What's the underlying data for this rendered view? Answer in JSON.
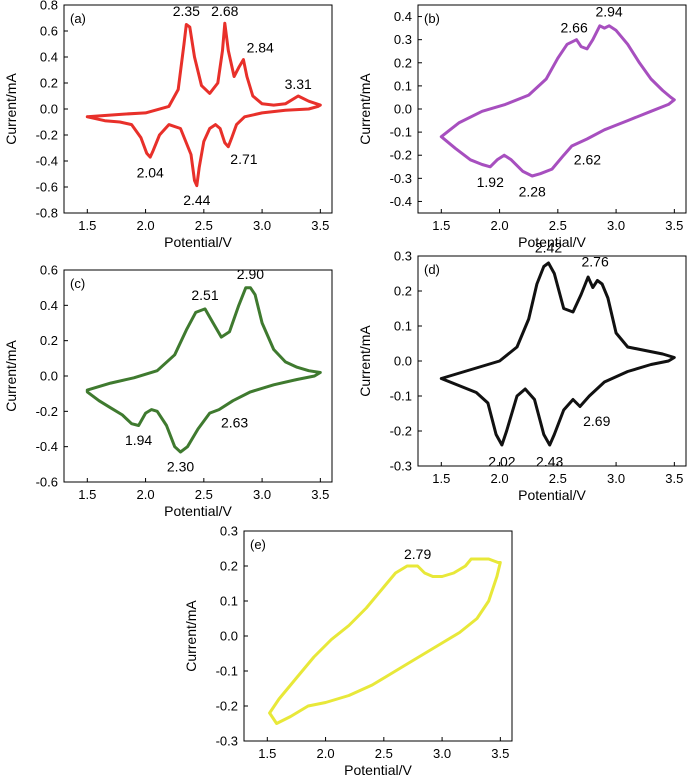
{
  "chart_data": [
    {
      "id": "a",
      "type": "line",
      "panel_label": "(a)",
      "xlabel": "Potential/V",
      "ylabel": "Current/mA",
      "xlim": [
        1.3,
        3.6
      ],
      "ylim": [
        -0.8,
        0.8
      ],
      "xticks": [
        1.5,
        2.0,
        2.5,
        3.0,
        3.5
      ],
      "xtick_labels": [
        "1.5",
        "2.0",
        "2.5",
        "3.0",
        "3.5"
      ],
      "yticks": [
        -0.8,
        -0.6,
        -0.4,
        -0.2,
        0.0,
        0.2,
        0.4,
        0.6,
        0.8
      ],
      "ytick_labels": [
        "-0.8",
        "-0.6",
        "-0.4",
        "-0.2",
        "0.0",
        "0.2",
        "0.4",
        "0.6",
        "0.8"
      ],
      "color": "#e8302a",
      "series": [
        {
          "name": "CV (a)",
          "x": [
            1.5,
            1.8,
            2.0,
            2.2,
            2.28,
            2.33,
            2.35,
            2.38,
            2.42,
            2.48,
            2.55,
            2.62,
            2.66,
            2.68,
            2.71,
            2.76,
            2.8,
            2.84,
            2.87,
            2.92,
            3.0,
            3.1,
            3.2,
            3.31,
            3.4,
            3.5,
            3.48,
            3.4,
            3.2,
            3.0,
            2.85,
            2.78,
            2.74,
            2.71,
            2.68,
            2.64,
            2.6,
            2.55,
            2.5,
            2.46,
            2.44,
            2.42,
            2.39,
            2.3,
            2.2,
            2.12,
            2.06,
            2.04,
            2.01,
            1.96,
            1.88,
            1.78,
            1.65,
            1.5
          ],
          "y": [
            -0.06,
            -0.04,
            -0.03,
            0.02,
            0.15,
            0.5,
            0.65,
            0.63,
            0.4,
            0.18,
            0.12,
            0.2,
            0.45,
            0.66,
            0.45,
            0.25,
            0.32,
            0.38,
            0.25,
            0.1,
            0.04,
            0.03,
            0.04,
            0.1,
            0.06,
            0.03,
            0.02,
            0.0,
            -0.01,
            -0.03,
            -0.06,
            -0.12,
            -0.22,
            -0.29,
            -0.26,
            -0.15,
            -0.12,
            -0.15,
            -0.25,
            -0.45,
            -0.59,
            -0.55,
            -0.35,
            -0.15,
            -0.12,
            -0.2,
            -0.33,
            -0.37,
            -0.34,
            -0.22,
            -0.12,
            -0.1,
            -0.09,
            -0.06
          ]
        }
      ],
      "annotations": [
        {
          "text": "2.35",
          "x": 2.35,
          "y": 0.66,
          "pos": "above"
        },
        {
          "text": "2.68",
          "x": 2.68,
          "y": 0.66,
          "pos": "above"
        },
        {
          "text": "2.84",
          "x": 2.85,
          "y": 0.38,
          "pos": "above-right"
        },
        {
          "text": "3.31",
          "x": 3.31,
          "y": 0.1,
          "pos": "above"
        },
        {
          "text": "2.04",
          "x": 2.04,
          "y": -0.39,
          "pos": "below"
        },
        {
          "text": "2.44",
          "x": 2.44,
          "y": -0.6,
          "pos": "below"
        },
        {
          "text": "2.71",
          "x": 2.71,
          "y": -0.3,
          "pos": "below-right"
        }
      ]
    },
    {
      "id": "b",
      "type": "line",
      "panel_label": "(b)",
      "xlabel": "Potential/V",
      "ylabel": "Current/mA",
      "xlim": [
        1.3,
        3.6
      ],
      "ylim": [
        -0.45,
        0.45
      ],
      "xticks": [
        1.5,
        2.0,
        2.5,
        3.0,
        3.5
      ],
      "xtick_labels": [
        "1.5",
        "2.0",
        "2.5",
        "3.0",
        "3.5"
      ],
      "yticks": [
        -0.4,
        -0.3,
        -0.2,
        -0.1,
        0.0,
        0.1,
        0.2,
        0.3,
        0.4
      ],
      "ytick_labels": [
        "-0.4",
        "-0.3",
        "-0.2",
        "-0.1",
        "0.0",
        "0.1",
        "0.2",
        "0.3",
        "0.4"
      ],
      "color": "#a74fbf",
      "series": [
        {
          "name": "CV (b)",
          "x": [
            1.5,
            1.65,
            1.85,
            2.05,
            2.25,
            2.4,
            2.5,
            2.58,
            2.66,
            2.7,
            2.75,
            2.8,
            2.86,
            2.9,
            2.94,
            3.0,
            3.1,
            3.2,
            3.3,
            3.4,
            3.47,
            3.5,
            3.45,
            3.3,
            3.1,
            2.9,
            2.75,
            2.62,
            2.55,
            2.45,
            2.35,
            2.28,
            2.2,
            2.1,
            2.04,
            1.98,
            1.92,
            1.85,
            1.75,
            1.62,
            1.5
          ],
          "y": [
            -0.12,
            -0.06,
            -0.01,
            0.02,
            0.06,
            0.13,
            0.22,
            0.28,
            0.3,
            0.27,
            0.26,
            0.3,
            0.36,
            0.35,
            0.36,
            0.34,
            0.28,
            0.2,
            0.13,
            0.08,
            0.05,
            0.04,
            0.02,
            -0.01,
            -0.05,
            -0.09,
            -0.13,
            -0.16,
            -0.2,
            -0.26,
            -0.28,
            -0.29,
            -0.27,
            -0.22,
            -0.2,
            -0.22,
            -0.25,
            -0.24,
            -0.22,
            -0.17,
            -0.12
          ]
        }
      ],
      "annotations": [
        {
          "text": "2.66",
          "x": 2.64,
          "y": 0.3,
          "pos": "above"
        },
        {
          "text": "2.94",
          "x": 2.94,
          "y": 0.37,
          "pos": "above"
        },
        {
          "text": "1.92",
          "x": 1.92,
          "y": -0.26,
          "pos": "below"
        },
        {
          "text": "2.28",
          "x": 2.28,
          "y": -0.3,
          "pos": "below"
        },
        {
          "text": "2.62",
          "x": 2.62,
          "y": -0.17,
          "pos": "below-right"
        }
      ]
    },
    {
      "id": "c",
      "type": "line",
      "panel_label": "(c)",
      "xlabel": "Potential/V",
      "ylabel": "Current/mA",
      "xlim": [
        1.3,
        3.6
      ],
      "ylim": [
        -0.6,
        0.6
      ],
      "xticks": [
        1.5,
        2.0,
        2.5,
        3.0,
        3.5
      ],
      "xtick_labels": [
        "1.5",
        "2.0",
        "2.5",
        "3.0",
        "3.5"
      ],
      "yticks": [
        -0.6,
        -0.4,
        -0.2,
        0.0,
        0.2,
        0.4,
        0.6
      ],
      "ytick_labels": [
        "-0.6",
        "-0.4",
        "-0.2",
        "0.0",
        "0.2",
        "0.4",
        "0.6"
      ],
      "color": "#3f7a2f",
      "series": [
        {
          "name": "CV (c)",
          "x": [
            1.5,
            1.7,
            1.9,
            2.1,
            2.25,
            2.35,
            2.43,
            2.51,
            2.58,
            2.65,
            2.72,
            2.8,
            2.86,
            2.9,
            2.94,
            3.0,
            3.1,
            3.2,
            3.3,
            3.4,
            3.5,
            3.45,
            3.3,
            3.1,
            2.9,
            2.75,
            2.63,
            2.55,
            2.45,
            2.36,
            2.3,
            2.25,
            2.18,
            2.1,
            2.05,
            2.0,
            1.94,
            1.88,
            1.8,
            1.7,
            1.6,
            1.5
          ],
          "y": [
            -0.08,
            -0.04,
            -0.01,
            0.03,
            0.12,
            0.26,
            0.36,
            0.38,
            0.3,
            0.22,
            0.25,
            0.4,
            0.5,
            0.5,
            0.46,
            0.3,
            0.15,
            0.08,
            0.05,
            0.03,
            0.02,
            0.0,
            -0.02,
            -0.05,
            -0.09,
            -0.14,
            -0.19,
            -0.21,
            -0.3,
            -0.4,
            -0.43,
            -0.4,
            -0.28,
            -0.2,
            -0.19,
            -0.21,
            -0.28,
            -0.27,
            -0.22,
            -0.18,
            -0.14,
            -0.09
          ]
        }
      ],
      "annotations": [
        {
          "text": "2.51",
          "x": 2.51,
          "y": 0.39,
          "pos": "above"
        },
        {
          "text": "2.90",
          "x": 2.9,
          "y": 0.51,
          "pos": "above"
        },
        {
          "text": "1.94",
          "x": 1.94,
          "y": -0.29,
          "pos": "below"
        },
        {
          "text": "2.30",
          "x": 2.3,
          "y": -0.44,
          "pos": "below"
        },
        {
          "text": "2.63",
          "x": 2.63,
          "y": -0.2,
          "pos": "below-right"
        }
      ]
    },
    {
      "id": "d",
      "type": "line",
      "panel_label": "(d)",
      "xlabel": "Potential/V",
      "ylabel": "Current/mA",
      "xlim": [
        1.3,
        3.6
      ],
      "ylim": [
        -0.3,
        0.3
      ],
      "xticks": [
        1.5,
        2.0,
        2.5,
        3.0,
        3.5
      ],
      "xtick_labels": [
        "1.5",
        "2.0",
        "2.5",
        "3.0",
        "3.5"
      ],
      "yticks": [
        -0.3,
        -0.2,
        -0.1,
        0.0,
        0.1,
        0.2,
        0.3
      ],
      "ytick_labels": [
        "-0.3",
        "-0.2",
        "-0.1",
        "0.0",
        "0.1",
        "0.2",
        "0.3"
      ],
      "color": "#111111",
      "series": [
        {
          "name": "CV (d)",
          "x": [
            1.5,
            1.8,
            2.0,
            2.15,
            2.25,
            2.32,
            2.38,
            2.42,
            2.47,
            2.55,
            2.63,
            2.7,
            2.76,
            2.8,
            2.84,
            2.88,
            2.93,
            3.0,
            3.1,
            3.25,
            3.4,
            3.5,
            3.45,
            3.3,
            3.1,
            2.9,
            2.77,
            2.69,
            2.63,
            2.55,
            2.47,
            2.43,
            2.38,
            2.3,
            2.22,
            2.15,
            2.06,
            2.02,
            1.97,
            1.9,
            1.8,
            1.65,
            1.5
          ],
          "y": [
            -0.05,
            -0.02,
            0.0,
            0.04,
            0.12,
            0.22,
            0.27,
            0.28,
            0.25,
            0.15,
            0.14,
            0.19,
            0.24,
            0.21,
            0.23,
            0.22,
            0.18,
            0.08,
            0.04,
            0.03,
            0.02,
            0.01,
            0.0,
            -0.01,
            -0.03,
            -0.06,
            -0.1,
            -0.13,
            -0.11,
            -0.14,
            -0.21,
            -0.24,
            -0.21,
            -0.11,
            -0.08,
            -0.1,
            -0.2,
            -0.24,
            -0.21,
            -0.12,
            -0.09,
            -0.07,
            -0.05
          ]
        }
      ],
      "annotations": [
        {
          "text": "2.42",
          "x": 2.42,
          "y": 0.29,
          "pos": "above"
        },
        {
          "text": "2.76",
          "x": 2.82,
          "y": 0.25,
          "pos": "above"
        },
        {
          "text": "2.69",
          "x": 2.7,
          "y": -0.14,
          "pos": "below-right"
        },
        {
          "text": "2.02",
          "x": 2.02,
          "y": -0.25,
          "pos": "below"
        },
        {
          "text": "2.43",
          "x": 2.43,
          "y": -0.25,
          "pos": "below"
        }
      ]
    },
    {
      "id": "e",
      "type": "line",
      "panel_label": "(e)",
      "xlabel": "Potential/V",
      "ylabel": "Current/mA",
      "xlim": [
        1.3,
        3.6
      ],
      "ylim": [
        -0.3,
        0.3
      ],
      "xticks": [
        1.5,
        2.0,
        2.5,
        3.0,
        3.5
      ],
      "xtick_labels": [
        "1.5",
        "2.0",
        "2.5",
        "3.0",
        "3.5"
      ],
      "yticks": [
        -0.3,
        -0.2,
        -0.1,
        0.0,
        0.1,
        0.2,
        0.3
      ],
      "ytick_labels": [
        "-0.3",
        "-0.2",
        "-0.1",
        "0.0",
        "0.1",
        "0.2",
        "0.3"
      ],
      "color": "#e8e839",
      "series": [
        {
          "name": "CV (e)",
          "x": [
            1.52,
            1.6,
            1.75,
            1.9,
            2.05,
            2.2,
            2.35,
            2.5,
            2.6,
            2.7,
            2.79,
            2.85,
            2.92,
            3.0,
            3.1,
            3.2,
            3.25,
            3.3,
            3.4,
            3.48,
            3.5,
            3.47,
            3.4,
            3.3,
            3.15,
            3.0,
            2.85,
            2.7,
            2.55,
            2.4,
            2.2,
            2.0,
            1.85,
            1.7,
            1.58,
            1.52
          ],
          "y": [
            -0.22,
            -0.18,
            -0.12,
            -0.06,
            -0.01,
            0.03,
            0.08,
            0.14,
            0.18,
            0.2,
            0.2,
            0.18,
            0.17,
            0.17,
            0.18,
            0.2,
            0.22,
            0.22,
            0.22,
            0.21,
            0.21,
            0.17,
            0.1,
            0.05,
            0.01,
            -0.02,
            -0.05,
            -0.08,
            -0.11,
            -0.14,
            -0.17,
            -0.19,
            -0.2,
            -0.23,
            -0.25,
            -0.22
          ]
        }
      ],
      "annotations": [
        {
          "text": "2.79",
          "x": 2.79,
          "y": 0.2,
          "pos": "above"
        }
      ]
    }
  ]
}
